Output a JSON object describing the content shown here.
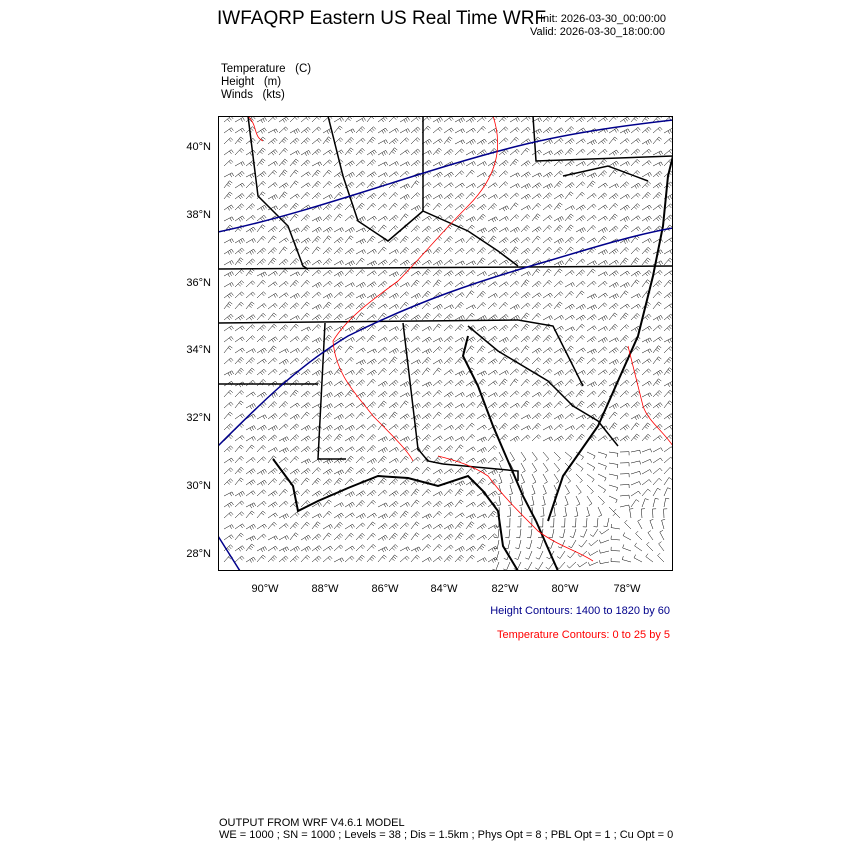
{
  "header": {
    "title": "IWFAQRP Eastern US Real Time WRF",
    "init": "Init: 2026-03-30_00:00:00",
    "valid": "Valid: 2026-03-30_18:00:00"
  },
  "fields": [
    "Temperature   (C)",
    "Height   (m)",
    "Winds   (kts)"
  ],
  "map": {
    "lat_ticks": [
      "40°N",
      "38°N",
      "36°N",
      "34°N",
      "32°N",
      "30°N",
      "28°N"
    ],
    "lon_ticks": [
      "90°W",
      "88°W",
      "86°W",
      "84°W",
      "82°W",
      "80°W",
      "78°W"
    ],
    "colors": {
      "height": "#00008b",
      "temperature": "#ff0000",
      "barbs": "#000000",
      "boundaries": "#000000"
    }
  },
  "contours": {
    "height": "Height Contours: 1400 to 1820 by 60",
    "temperature": "Temperature Contours: 0 to 25 by 5"
  },
  "footer": {
    "line1": "OUTPUT FROM WRF V4.6.1 MODEL",
    "line2": "WE = 1000 ; SN = 1000 ; Levels = 38 ; Dis = 1.5km ; Phys Opt = 8 ; PBL Opt = 1 ; Cu Opt = 0"
  }
}
